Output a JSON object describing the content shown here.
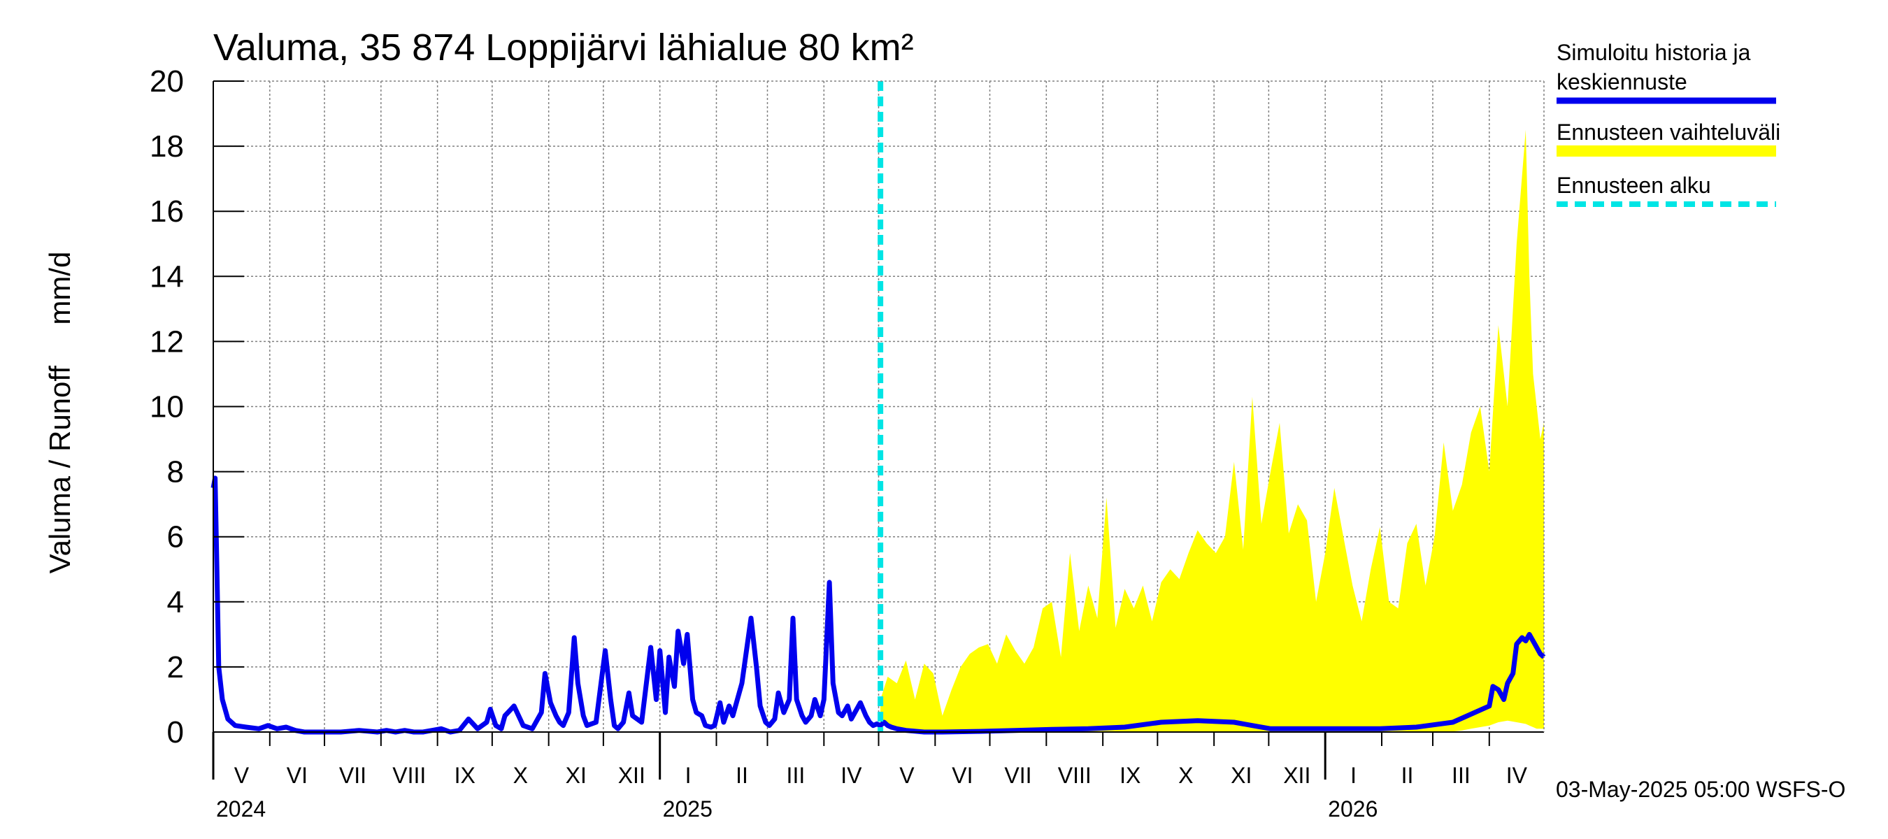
{
  "chart_data": {
    "type": "area",
    "title": "Valuma, 35 874 Loppijärvi lähialue 80 km²",
    "ylabel": "Valuma / Runoff     mm/d",
    "xlabel": "",
    "ylim": [
      0,
      20
    ],
    "y_ticks": [
      "0",
      "2",
      "4",
      "6",
      "8",
      "10",
      "12",
      "14",
      "16",
      "18",
      "20"
    ],
    "x_range_days": [
      0,
      730
    ],
    "month_labels": [
      "V",
      "VI",
      "VII",
      "VIII",
      "IX",
      "X",
      "XI",
      "XII",
      "I",
      "II",
      "III",
      "IV",
      "V",
      "VI",
      "VII",
      "VIII",
      "IX",
      "X",
      "XI",
      "XII",
      "I",
      "II",
      "III",
      "IV"
    ],
    "year_labels": [
      "2024",
      "2025",
      "2026"
    ],
    "forecast_start_day": 366,
    "grid": true,
    "legend_position": "top-right",
    "legend": {
      "history": "Simuloitu historia ja keskiennuste",
      "band": "Ennusteen vaihteluväli",
      "forecast_start": "Ennusteen alku"
    },
    "footer": "03-May-2025 05:00 WSFS-O",
    "colors": {
      "history": "#0000ee",
      "band": "#ffff00",
      "forecast_start": "#00e5e5",
      "grid": "#808080"
    },
    "series": [
      {
        "name": "Simuloitu historia ja keskiennuste",
        "x": [
          0,
          1,
          2,
          3,
          5,
          8,
          12,
          18,
          25,
          30,
          35,
          40,
          45,
          50,
          55,
          60,
          70,
          80,
          90,
          95,
          100,
          105,
          110,
          115,
          120,
          125,
          130,
          135,
          140,
          145,
          150,
          152,
          155,
          158,
          160,
          165,
          170,
          175,
          178,
          180,
          182,
          185,
          188,
          190,
          192,
          195,
          198,
          200,
          203,
          205,
          210,
          215,
          218,
          220,
          222,
          225,
          228,
          230,
          235,
          240,
          243,
          245,
          248,
          250,
          253,
          255,
          258,
          260,
          263,
          265,
          268,
          270,
          273,
          275,
          278,
          280,
          283,
          285,
          290,
          295,
          298,
          300,
          303,
          305,
          308,
          310,
          313,
          316,
          318,
          320,
          323,
          325,
          328,
          330,
          333,
          335,
          338,
          340,
          343,
          345,
          348,
          350,
          353,
          355,
          358,
          360,
          362,
          364,
          366,
          368,
          370,
          372,
          375,
          380,
          390,
          400,
          420,
          440,
          460,
          480,
          500,
          520,
          540,
          560,
          570,
          580,
          590,
          600,
          610,
          620,
          640,
          660,
          680,
          700,
          702,
          705,
          708,
          710,
          713,
          715,
          718,
          720,
          722,
          725,
          728,
          730
        ],
        "values": [
          7.5,
          7.8,
          5,
          2,
          1,
          0.4,
          0.2,
          0.15,
          0.1,
          0.2,
          0.1,
          0.15,
          0.05,
          0,
          0,
          0,
          0,
          0.05,
          0,
          0.05,
          0,
          0.05,
          0,
          0,
          0.05,
          0.1,
          0,
          0.05,
          0.4,
          0.1,
          0.3,
          0.7,
          0.2,
          0.1,
          0.5,
          0.8,
          0.2,
          0.1,
          0.4,
          0.6,
          1.8,
          0.9,
          0.5,
          0.3,
          0.2,
          0.6,
          2.9,
          1.5,
          0.5,
          0.2,
          0.3,
          2.5,
          1.0,
          0.2,
          0.1,
          0.3,
          1.2,
          0.5,
          0.3,
          2.6,
          1.0,
          2.5,
          0.6,
          2.3,
          1.4,
          3.1,
          2.1,
          3.0,
          1.0,
          0.6,
          0.5,
          0.2,
          0.15,
          0.2,
          0.9,
          0.3,
          0.8,
          0.5,
          1.5,
          3.5,
          2.0,
          0.8,
          0.3,
          0.2,
          0.4,
          1.2,
          0.6,
          1.0,
          3.5,
          1.0,
          0.5,
          0.3,
          0.5,
          1.0,
          0.5,
          1.0,
          4.6,
          1.5,
          0.6,
          0.5,
          0.8,
          0.4,
          0.7,
          0.9,
          0.5,
          0.3,
          0.2,
          0.25,
          0.2,
          0.3,
          0.2,
          0.15,
          0.1,
          0.05,
          0,
          0,
          0.02,
          0.05,
          0.08,
          0.1,
          0.15,
          0.3,
          0.35,
          0.3,
          0.2,
          0.1,
          0.1,
          0.1,
          0.1,
          0.1,
          0.1,
          0.15,
          0.3,
          0.8,
          1.4,
          1.3,
          1.0,
          1.5,
          1.8,
          2.7,
          2.9,
          2.8,
          3.0,
          2.7,
          2.4,
          2.3
        ]
      },
      {
        "name": "Ennusteen vaihteluväli",
        "x": [
          366,
          370,
          375,
          380,
          385,
          390,
          395,
          400,
          405,
          410,
          415,
          420,
          425,
          430,
          435,
          440,
          445,
          450,
          455,
          460,
          465,
          470,
          475,
          480,
          485,
          490,
          495,
          500,
          505,
          510,
          515,
          520,
          525,
          530,
          535,
          540,
          545,
          550,
          555,
          560,
          565,
          570,
          575,
          580,
          585,
          590,
          595,
          600,
          605,
          610,
          615,
          620,
          625,
          630,
          635,
          640,
          645,
          650,
          655,
          660,
          665,
          670,
          675,
          680,
          685,
          690,
          695,
          700,
          705,
          710,
          715,
          720,
          722,
          724,
          726,
          728,
          730
        ],
        "upper": [
          1.0,
          1.7,
          1.5,
          2.2,
          1.0,
          2.1,
          1.8,
          0.5,
          1.3,
          2.0,
          2.4,
          2.6,
          2.7,
          2.1,
          3.0,
          2.5,
          2.1,
          2.6,
          3.8,
          4.0,
          2.3,
          5.5,
          3.1,
          4.5,
          3.5,
          7.2,
          3.2,
          4.4,
          3.8,
          4.5,
          3.4,
          4.6,
          5.0,
          4.7,
          5.5,
          6.2,
          5.8,
          5.5,
          6.0,
          8.3,
          5.6,
          10.3,
          6.4,
          8.0,
          9.5,
          6.1,
          7.0,
          6.5,
          4.0,
          5.5,
          7.5,
          6.0,
          4.5,
          3.4,
          5.0,
          6.3,
          4.0,
          3.8,
          5.8,
          6.4,
          4.5,
          6.0,
          8.9,
          6.8,
          7.6,
          9.2,
          10.0,
          8.0,
          12.5,
          10.0,
          15.0,
          18.5,
          14.0,
          11.0,
          10.0,
          9.0,
          9.5
        ],
        "lower": [
          0.3,
          0.2,
          0.15,
          0.1,
          0.05,
          0.02,
          0,
          0,
          0,
          0,
          0,
          0,
          0,
          0,
          0,
          0,
          0,
          0,
          0,
          0,
          0,
          0,
          0,
          0,
          0,
          0,
          0,
          0,
          0,
          0,
          0,
          0,
          0,
          0,
          0,
          0,
          0,
          0,
          0,
          0,
          0,
          0,
          0,
          0,
          0,
          0,
          0,
          0,
          0,
          0,
          0,
          0,
          0,
          0,
          0,
          0,
          0,
          0,
          0,
          0,
          0,
          0,
          0,
          0.02,
          0.05,
          0.1,
          0.15,
          0.2,
          0.3,
          0.35,
          0.3,
          0.25,
          0.2,
          0.15,
          0.1,
          0.1,
          0.1
        ]
      }
    ]
  }
}
